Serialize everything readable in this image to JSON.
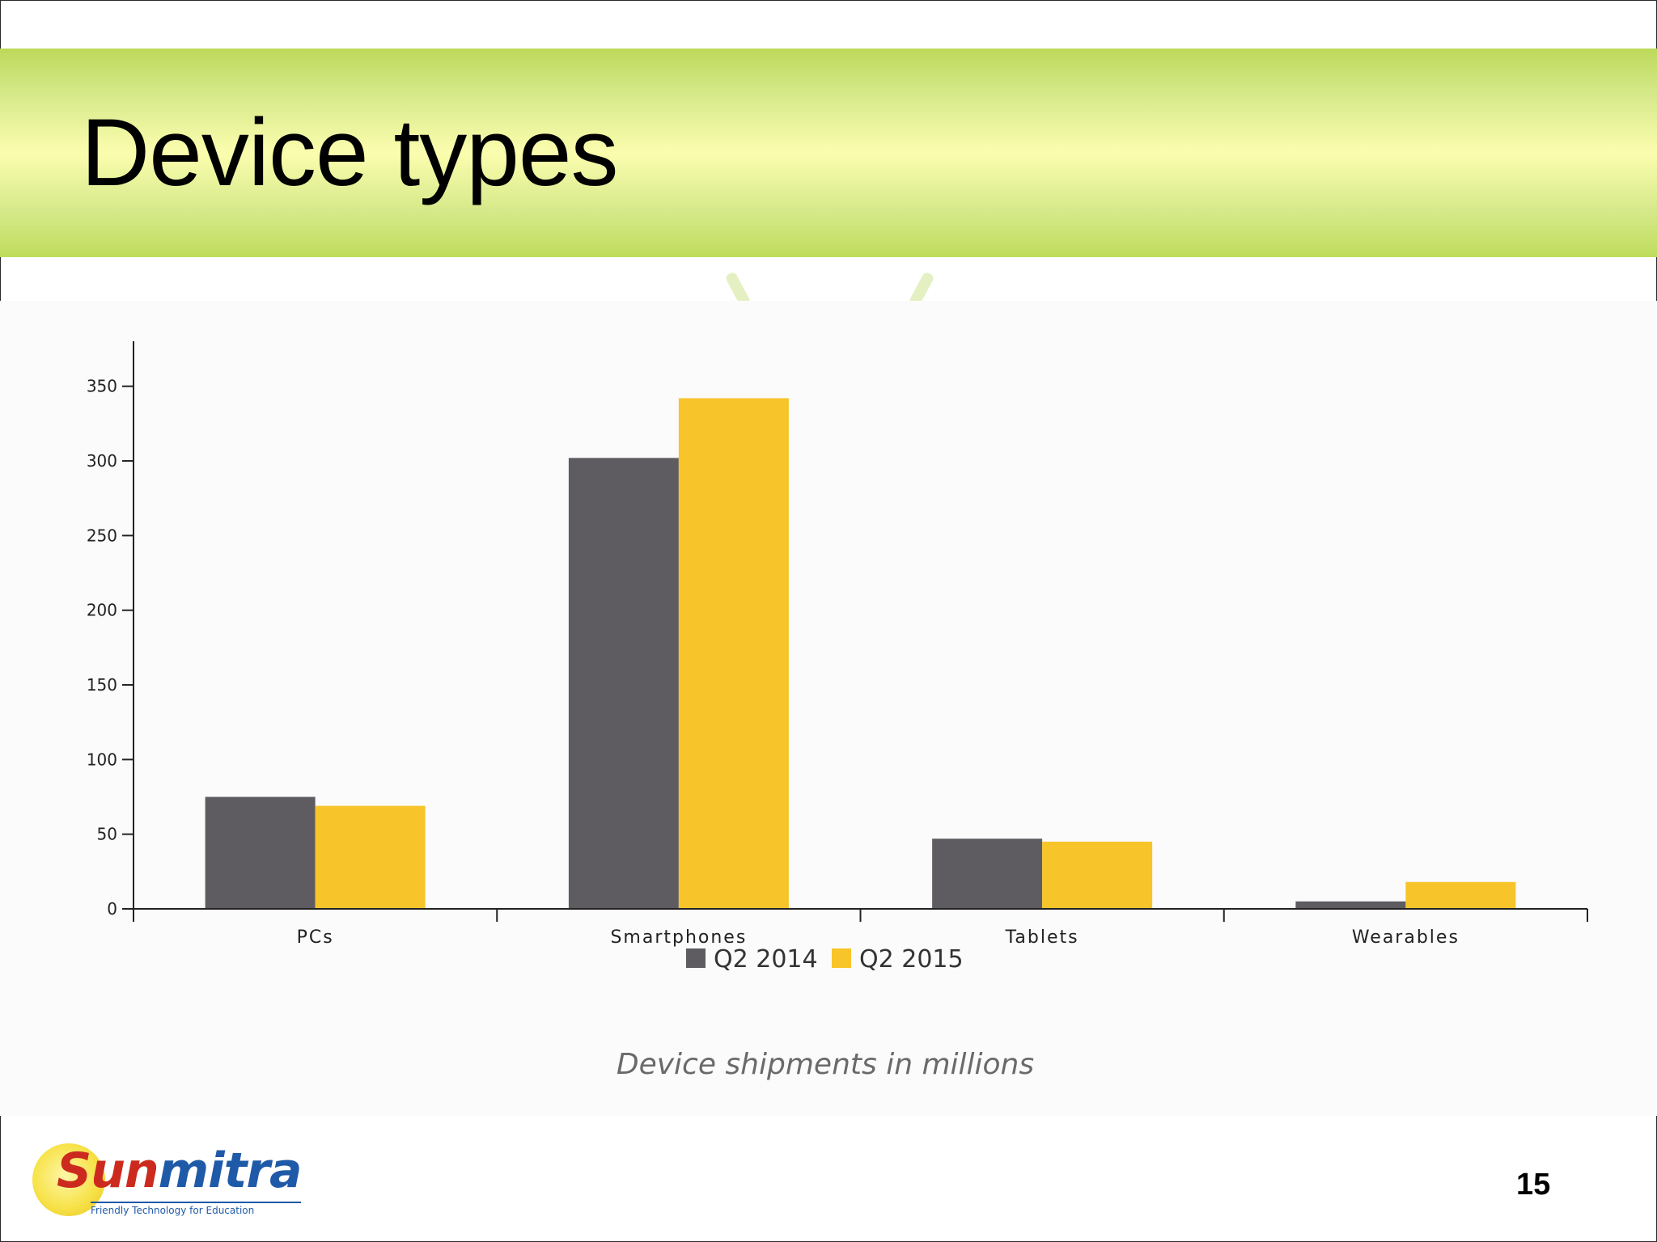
{
  "slide": {
    "title": "Device types",
    "caption": "Device shipments in millions",
    "page_number": "15"
  },
  "logo": {
    "name_part1": "Sun",
    "name_part2": "mitra",
    "tagline": "Friendly Technology for Education"
  },
  "colors": {
    "series_q2_2014": "#5f5c61",
    "series_q2_2015": "#f7c42a",
    "axis": "#222222"
  },
  "chart_data": {
    "type": "bar",
    "title": "",
    "xlabel": "",
    "ylabel": "",
    "categories": [
      "PCs",
      "Smartphones",
      "Tablets",
      "Wearables"
    ],
    "series": [
      {
        "name": "Q2 2014",
        "values": [
          75,
          302,
          47,
          5
        ]
      },
      {
        "name": "Q2 2015",
        "values": [
          69,
          342,
          45,
          18
        ]
      }
    ],
    "ylim": [
      0,
      378
    ],
    "yticks": [
      0,
      50,
      100,
      150,
      200,
      250,
      300,
      350
    ],
    "grid": false,
    "legend_position": "bottom-center"
  }
}
